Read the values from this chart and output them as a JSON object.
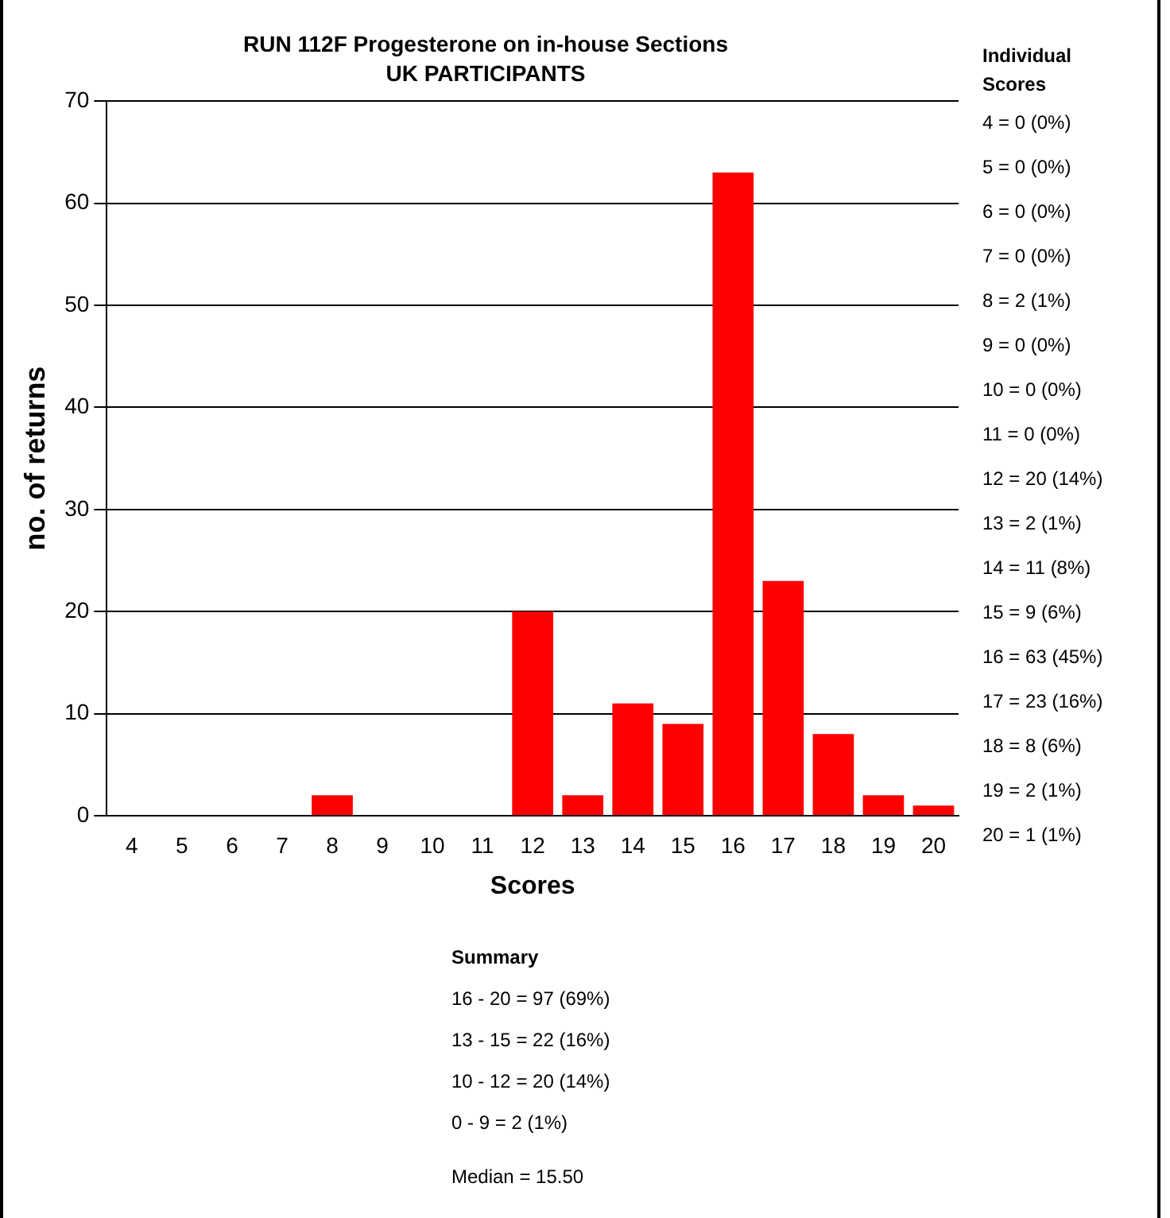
{
  "chart_data": {
    "type": "bar",
    "title": "RUN 112F Progesterone on in-house Sections",
    "subtitle": "UK PARTICIPANTS",
    "xlabel": "Scores",
    "ylabel": "no. of returns",
    "categories": [
      "4",
      "5",
      "6",
      "7",
      "8",
      "9",
      "10",
      "11",
      "12",
      "13",
      "14",
      "15",
      "16",
      "17",
      "18",
      "19",
      "20"
    ],
    "values": [
      0,
      0,
      0,
      0,
      2,
      0,
      0,
      0,
      20,
      2,
      11,
      9,
      63,
      23,
      8,
      2,
      1
    ],
    "color": "#ff0000",
    "ylim": [
      0,
      70
    ],
    "yticks": [
      0,
      10,
      20,
      30,
      40,
      50,
      60,
      70
    ],
    "grid": "y",
    "legend": false,
    "annotations": [
      "Individual Scores",
      "4 = 0 (0%)",
      "5 = 0 (0%)",
      "6 = 0 (0%)",
      "7 = 0 (0%)",
      "8 = 2 (1%)",
      "9 = 0 (0%)",
      "10 = 0 (0%)",
      "11 = 0 (0%)",
      "12 = 20 (14%)",
      "13 = 2 (1%)",
      "14 = 11 (8%)",
      "15 = 9 (6%)",
      "16 = 63 (45%)",
      "17 = 23 (16%)",
      "18 = 8 (6%)",
      "19 = 2 (1%)",
      "20 = 1 (1%)",
      "Summary",
      "16 - 20 = 97 (69%)",
      "13 - 15 = 22 (16%)",
      "10 - 12 = 20 (14%)",
      "0 - 9 = 2 (1%)",
      "Median = 15.50"
    ]
  }
}
